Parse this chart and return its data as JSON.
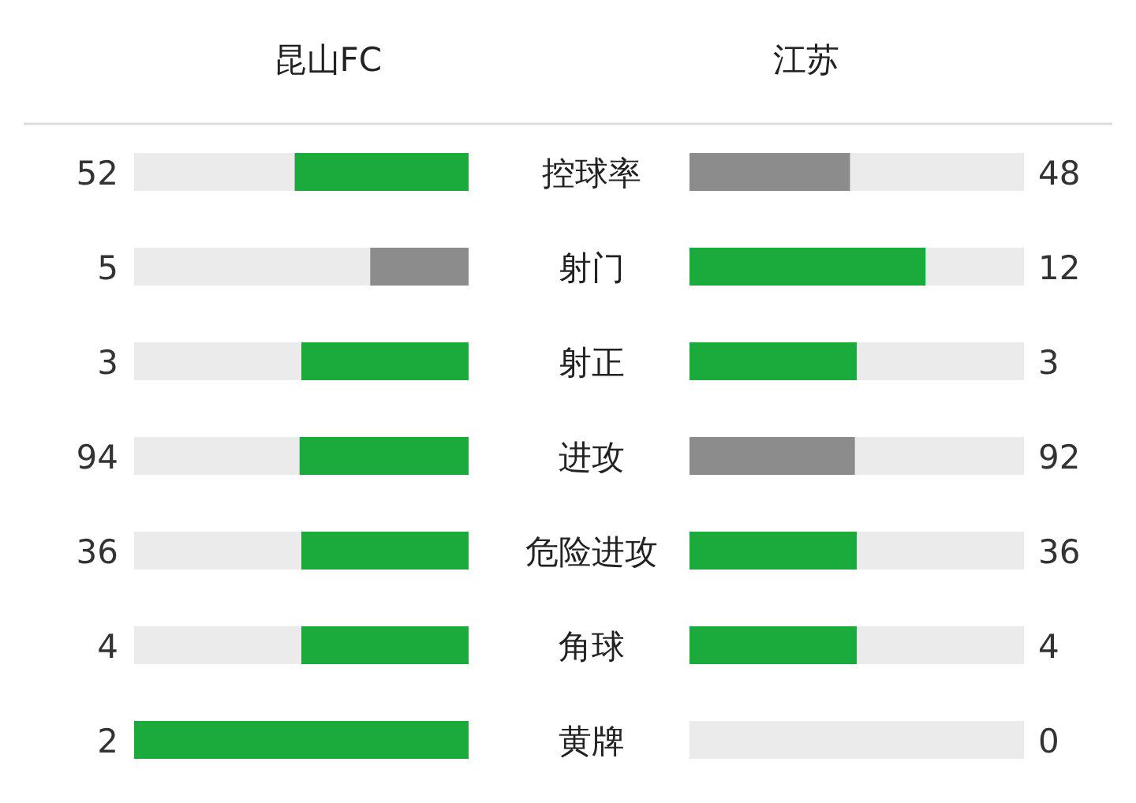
{
  "chart_data": {
    "type": "other",
    "data_labels": true,
    "categories": [
      "控球率",
      "射门",
      "射正",
      "进攻",
      "危险进攻",
      "角球",
      "黄牌"
    ],
    "series": [
      {
        "name": "昆山FC",
        "values": [
          52,
          5,
          3,
          94,
          36,
          4,
          2
        ],
        "colors": [
          "#1aab3c",
          "#8c8c8c",
          "#1aab3c",
          "#1aab3c",
          "#1aab3c",
          "#1aab3c",
          "#1aab3c"
        ]
      },
      {
        "name": "江苏",
        "values": [
          48,
          12,
          3,
          92,
          36,
          4,
          0
        ],
        "colors": [
          "#8c8c8c",
          "#1aab3c",
          "#1aab3c",
          "#8c8c8c",
          "#1aab3c",
          "#1aab3c",
          "#1aab3c"
        ]
      }
    ]
  }
}
